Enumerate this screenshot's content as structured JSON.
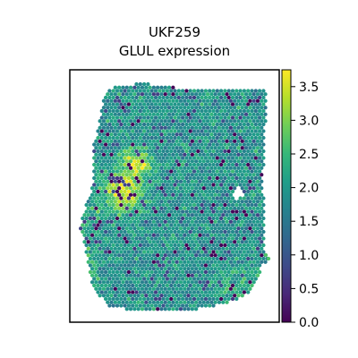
{
  "chart_data": {
    "type": "heatmap",
    "title_lines": [
      "UKF259",
      "GLUL expression"
    ],
    "colormap": "viridis",
    "colorbar": {
      "min": 0.0,
      "max": 3.75,
      "ticks": [
        0.0,
        0.5,
        1.0,
        1.5,
        2.0,
        2.5,
        3.0,
        3.5
      ],
      "tick_labels": [
        "0.0",
        "0.5",
        "1.0",
        "1.5",
        "2.0",
        "2.5",
        "3.0",
        "3.5"
      ]
    },
    "axes": {
      "frame": "box",
      "ticks": "none",
      "grid": false
    },
    "hotspots": [
      {
        "name": "",
        "value": 3.6
      },
      {
        "name": "",
        "value": 3.3
      }
    ],
    "typical_value": 1.9
  },
  "colors": {
    "viridis": [
      "#440154",
      "#482878",
      "#3e4a89",
      "#31688e",
      "#26828e",
      "#1f9e89",
      "#35b779",
      "#6ece58",
      "#b5de2b",
      "#fde725"
    ]
  }
}
